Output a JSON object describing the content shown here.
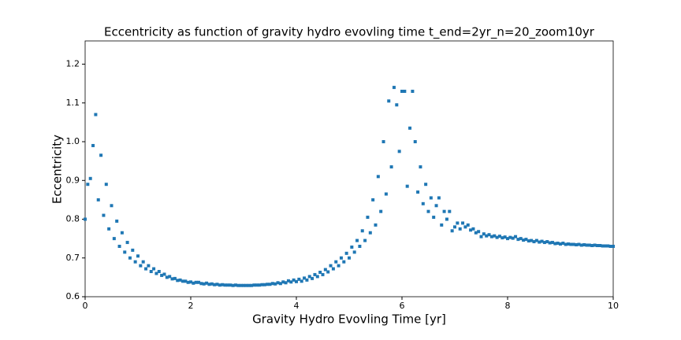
{
  "chart_data": {
    "type": "scatter",
    "title": "Eccentricity as function of gravity hydro evovling time t_end=2yr_n=20_zoom10yr",
    "x_label": "Gravity Hydro Evovling Time [yr]",
    "y_label": "Eccentricity",
    "xlim": [
      0,
      10
    ],
    "ylim": [
      0.6,
      1.26
    ],
    "xticks": [
      0,
      2,
      4,
      6,
      8,
      10
    ],
    "yticks": [
      0.6,
      0.7,
      0.8,
      0.9,
      {
        "value": 1,
        "label": "1.0"
      },
      1.1,
      1.2
    ],
    "grid": false,
    "series": [
      {
        "color": "#1f77b4",
        "x": [
          0,
          0.05,
          0.1,
          0.15,
          0.2,
          0.25,
          0.3,
          0.35,
          0.4,
          0.45,
          0.5,
          0.55,
          0.6,
          0.65,
          0.7,
          0.75,
          0.8,
          0.85,
          0.9,
          0.95,
          1,
          1.05,
          1.1,
          1.15,
          1.2,
          1.25,
          1.3,
          1.35,
          1.4,
          1.45,
          1.5,
          1.55,
          1.6,
          1.65,
          1.7,
          1.75,
          1.8,
          1.85,
          1.9,
          1.95,
          2,
          2.05,
          2.1,
          2.15,
          2.2,
          2.25,
          2.3,
          2.35,
          2.4,
          2.45,
          2.5,
          2.55,
          2.6,
          2.65,
          2.7,
          2.75,
          2.8,
          2.85,
          2.9,
          2.95,
          3,
          3.05,
          3.1,
          3.15,
          3.2,
          3.25,
          3.3,
          3.35,
          3.4,
          3.45,
          3.5,
          3.55,
          3.6,
          3.65,
          3.7,
          3.75,
          3.8,
          3.85,
          3.9,
          3.95,
          4,
          4.05,
          4.1,
          4.15,
          4.2,
          4.25,
          4.3,
          4.35,
          4.4,
          4.45,
          4.5,
          4.55,
          4.6,
          4.65,
          4.7,
          4.75,
          4.8,
          4.85,
          4.9,
          4.95,
          5,
          5.05,
          5.1,
          5.15,
          5.2,
          5.25,
          5.3,
          5.35,
          5.4,
          5.45,
          5.5,
          5.55,
          5.6,
          5.65,
          5.7,
          5.75,
          5.8,
          5.85,
          5.9,
          5.95,
          6,
          6.05,
          6.1,
          6.15,
          6.2,
          6.25,
          6.3,
          6.35,
          6.4,
          6.45,
          6.5,
          6.55,
          6.6,
          6.65,
          6.7,
          6.75,
          6.8,
          6.85,
          6.9,
          6.95,
          7,
          7.05,
          7.1,
          7.15,
          7.2,
          7.25,
          7.3,
          7.35,
          7.4,
          7.45,
          7.5,
          7.55,
          7.6,
          7.65,
          7.7,
          7.75,
          7.8,
          7.85,
          7.9,
          7.95,
          8,
          8.05,
          8.1,
          8.15,
          8.2,
          8.25,
          8.3,
          8.35,
          8.4,
          8.45,
          8.5,
          8.55,
          8.6,
          8.65,
          8.7,
          8.75,
          8.8,
          8.85,
          8.9,
          8.95,
          9,
          9.05,
          9.1,
          9.15,
          9.2,
          9.25,
          9.3,
          9.35,
          9.4,
          9.45,
          9.5,
          9.55,
          9.6,
          9.65,
          9.7,
          9.75,
          9.8,
          9.85,
          9.9,
          9.95,
          10
        ],
        "values": [
          0.8,
          0.89,
          0.905,
          0.99,
          1.07,
          0.85,
          0.965,
          0.81,
          0.89,
          0.775,
          0.835,
          0.75,
          0.795,
          0.73,
          0.765,
          0.715,
          0.74,
          0.7,
          0.72,
          0.69,
          0.705,
          0.68,
          0.69,
          0.672,
          0.68,
          0.665,
          0.672,
          0.66,
          0.665,
          0.655,
          0.658,
          0.65,
          0.652,
          0.646,
          0.647,
          0.642,
          0.643,
          0.64,
          0.64,
          0.637,
          0.638,
          0.635,
          0.637,
          0.637,
          0.634,
          0.633,
          0.635,
          0.632,
          0.633,
          0.631,
          0.632,
          0.63,
          0.631,
          0.63,
          0.63,
          0.63,
          0.629,
          0.63,
          0.629,
          0.629,
          0.629,
          0.629,
          0.629,
          0.629,
          0.63,
          0.63,
          0.63,
          0.631,
          0.631,
          0.632,
          0.632,
          0.634,
          0.633,
          0.636,
          0.634,
          0.638,
          0.636,
          0.641,
          0.638,
          0.643,
          0.639,
          0.645,
          0.64,
          0.648,
          0.643,
          0.652,
          0.647,
          0.657,
          0.652,
          0.663,
          0.657,
          0.67,
          0.664,
          0.68,
          0.672,
          0.69,
          0.68,
          0.7,
          0.69,
          0.712,
          0.7,
          0.728,
          0.715,
          0.745,
          0.73,
          0.77,
          0.745,
          0.805,
          0.765,
          0.85,
          0.785,
          0.91,
          0.82,
          1.0,
          0.865,
          1.105,
          0.935,
          1.14,
          1.095,
          0.975,
          1.13,
          1.13,
          0.885,
          1.035,
          1.13,
          1.0,
          0.87,
          0.935,
          0.84,
          0.89,
          0.82,
          0.855,
          0.805,
          0.835,
          0.855,
          0.785,
          0.82,
          0.8,
          0.82,
          0.77,
          0.78,
          0.79,
          0.775,
          0.79,
          0.78,
          0.785,
          0.772,
          0.775,
          0.765,
          0.768,
          0.755,
          0.762,
          0.757,
          0.76,
          0.755,
          0.757,
          0.753,
          0.756,
          0.752,
          0.754,
          0.75,
          0.753,
          0.751,
          0.755,
          0.748,
          0.75,
          0.746,
          0.748,
          0.744,
          0.745,
          0.742,
          0.745,
          0.741,
          0.743,
          0.74,
          0.742,
          0.739,
          0.74,
          0.737,
          0.738,
          0.736,
          0.738,
          0.735,
          0.736,
          0.735,
          0.735,
          0.734,
          0.735,
          0.733,
          0.734,
          0.733,
          0.733,
          0.732,
          0.733,
          0.732,
          0.732,
          0.731,
          0.731,
          0.731,
          0.73,
          0.73
        ]
      }
    ]
  }
}
